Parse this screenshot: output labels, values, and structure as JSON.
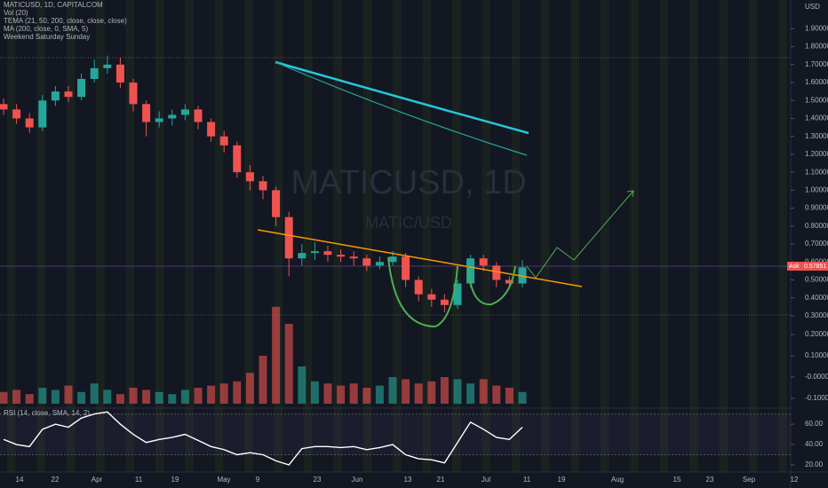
{
  "chart_data": {
    "type": "candlestick",
    "title": "MATICUSD, 1D, CAPITALCOM",
    "indicators": [
      "Vol (20)",
      "TEMA (21, 50, 200, close, close, close)",
      "MA (200, close, 0, SMA, 5)",
      "Weekend Saturday Sunday"
    ],
    "watermark": "MATICUSD, 1D",
    "watermark_sub": "MATIC/USD",
    "currency": "USD",
    "price_tag": {
      "label": "Ask",
      "value": 0.57851,
      "value_label": "0.57851"
    },
    "rsi_label": "RSI (14, close, SMA, 14, 2)",
    "x_labels": [
      "14",
      "22",
      "Apr",
      "11",
      "19",
      "May",
      "9",
      "23",
      "Jun",
      "13",
      "21",
      "Jul",
      "11",
      "19",
      "Aug",
      "15",
      "23",
      "Sep",
      "12"
    ],
    "up_color": "#26a69a",
    "down_color": "#ef5350",
    "open": [
      1.48,
      1.45,
      1.4,
      1.35,
      1.5,
      1.55,
      1.52,
      1.62,
      1.68,
      1.7,
      1.6,
      1.48,
      1.38,
      1.4,
      1.42,
      1.45,
      1.38,
      1.3,
      1.25,
      1.1,
      1.05,
      1.0,
      0.85,
      0.62,
      0.65,
      0.66,
      0.64,
      0.63,
      0.62,
      0.58,
      0.6,
      0.63,
      0.5,
      0.42,
      0.39,
      0.36,
      0.48,
      0.62,
      0.58,
      0.5,
      0.48
    ],
    "high": [
      1.51,
      1.48,
      1.43,
      1.53,
      1.58,
      1.58,
      1.65,
      1.73,
      1.75,
      1.74,
      1.62,
      1.5,
      1.44,
      1.45,
      1.48,
      1.47,
      1.4,
      1.33,
      1.27,
      1.14,
      1.08,
      1.02,
      0.88,
      0.7,
      0.71,
      0.69,
      0.67,
      0.66,
      0.64,
      0.63,
      0.66,
      0.65,
      0.52,
      0.45,
      0.42,
      0.5,
      0.64,
      0.64,
      0.6,
      0.52,
      0.61
    ],
    "low": [
      1.42,
      1.37,
      1.32,
      1.33,
      1.47,
      1.49,
      1.5,
      1.6,
      1.65,
      1.57,
      1.44,
      1.3,
      1.35,
      1.36,
      1.39,
      1.34,
      1.27,
      1.21,
      1.07,
      1.0,
      0.95,
      0.8,
      0.52,
      0.58,
      0.61,
      0.6,
      0.6,
      0.58,
      0.55,
      0.56,
      0.58,
      0.46,
      0.38,
      0.35,
      0.32,
      0.34,
      0.46,
      0.55,
      0.46,
      0.45,
      0.46
    ],
    "close": [
      1.45,
      1.4,
      1.35,
      1.5,
      1.55,
      1.52,
      1.62,
      1.68,
      1.7,
      1.6,
      1.48,
      1.38,
      1.4,
      1.42,
      1.45,
      1.38,
      1.3,
      1.25,
      1.1,
      1.05,
      1.0,
      0.85,
      0.62,
      0.65,
      0.66,
      0.64,
      0.63,
      0.62,
      0.58,
      0.6,
      0.63,
      0.5,
      0.42,
      0.39,
      0.36,
      0.48,
      0.62,
      0.58,
      0.5,
      0.48,
      0.57
    ],
    "ylim": [
      0.27,
      2.06
    ],
    "yticks": [
      {
        "value": 0.3,
        "label": "0.30000"
      },
      {
        "value": 0.4,
        "label": "0.40000"
      },
      {
        "value": 0.5,
        "label": "0.50000"
      },
      {
        "value": 0.6,
        "label": "0.60000"
      },
      {
        "value": 0.7,
        "label": "0.70000"
      },
      {
        "value": 0.8,
        "label": "0.80000"
      },
      {
        "value": 0.9,
        "label": "0.90000"
      },
      {
        "value": 1.0,
        "label": "1.00000"
      },
      {
        "value": 1.1,
        "label": "1.10000"
      },
      {
        "value": 1.2,
        "label": "1.20000"
      },
      {
        "value": 1.3,
        "label": "1.30000"
      },
      {
        "value": 1.4,
        "label": "1.40000"
      },
      {
        "value": 1.5,
        "label": "1.50000"
      },
      {
        "value": 1.6,
        "label": "1.60000"
      },
      {
        "value": 1.7,
        "label": "1.70000"
      },
      {
        "value": 1.8,
        "label": "1.80000"
      },
      {
        "value": 1.9,
        "label": "1.90000"
      }
    ],
    "volume": [
      -0.07,
      -0.06,
      -0.08,
      -0.05,
      -0.06,
      -0.04,
      -0.07,
      -0.03,
      -0.06,
      -0.08,
      -0.05,
      -0.06,
      -0.07,
      -0.08,
      -0.06,
      -0.05,
      -0.04,
      -0.03,
      -0.02,
      0.02,
      0.1,
      0.33,
      0.25,
      0.05,
      -0.02,
      -0.03,
      -0.04,
      -0.03,
      -0.05,
      -0.04,
      0.0,
      -0.01,
      -0.03,
      -0.02,
      0.0,
      -0.01,
      -0.03,
      -0.01,
      -0.04,
      -0.05,
      -0.07
    ],
    "volume_ylim": [
      -0.125,
      0.354
    ],
    "volume_ticks": [
      {
        "value": 0.2,
        "label": "0.20000"
      },
      {
        "value": 0.1,
        "label": "0.10000"
      },
      {
        "value": 0,
        "label": "-0.00000"
      },
      {
        "value": -0.1,
        "label": "-0.10000"
      }
    ],
    "rsi": [
      45,
      40,
      38,
      55,
      60,
      57,
      66,
      70,
      72,
      60,
      50,
      42,
      45,
      47,
      50,
      44,
      38,
      35,
      30,
      32,
      30,
      24,
      20,
      36,
      38,
      38,
      37,
      38,
      35,
      37,
      40,
      30,
      26,
      25,
      22,
      42,
      62,
      55,
      47,
      45,
      57
    ],
    "rsi_ylim": [
      13,
      74
    ],
    "rsi_ticks": [
      {
        "value": 60,
        "label": "60.00"
      },
      {
        "value": 40,
        "label": "40.00"
      },
      {
        "value": 20,
        "label": "20.00"
      }
    ],
    "rsi_color": "#ffffff"
  }
}
